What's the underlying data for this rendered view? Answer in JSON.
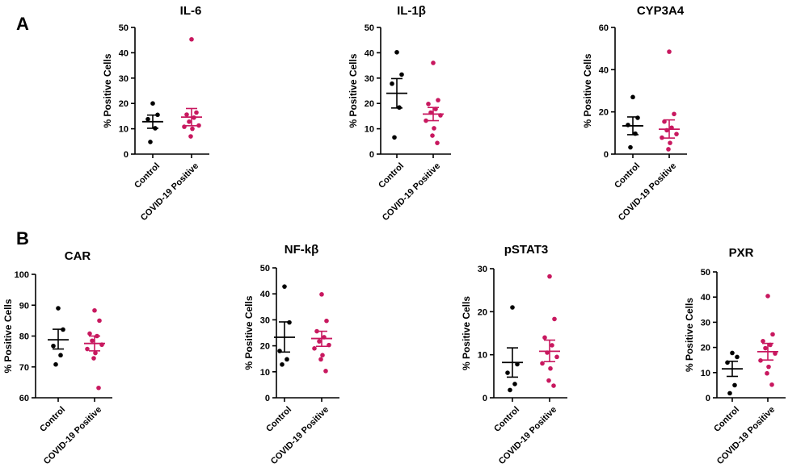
{
  "figure": {
    "panel_labels": [
      "A",
      "B"
    ],
    "colors": {
      "control": "#000000",
      "covid": "#c8185f"
    }
  },
  "chart_data": [
    {
      "type": "scatter",
      "panel": "A",
      "title": "IL-6",
      "ylabel": "% Positive Cells",
      "categories": [
        "Control",
        "COVID-19 Positive"
      ],
      "ylim": [
        0,
        50
      ],
      "yticks": [
        0,
        10,
        20,
        30,
        40,
        50
      ],
      "series": [
        {
          "name": "Control",
          "mean": 12.8,
          "sem_low": 10.2,
          "sem_high": 15.4,
          "values": [
            20,
            15.5,
            13.8,
            10.2,
            4.8
          ]
        },
        {
          "name": "COVID-19 Positive",
          "mean": 14.6,
          "sem_low": 11.2,
          "sem_high": 18.0,
          "values": [
            45.3,
            16.4,
            15.6,
            14.4,
            12.8,
            11.3,
            10.8,
            10.0,
            7.0
          ]
        }
      ]
    },
    {
      "type": "scatter",
      "panel": "A",
      "title": "IL-1β",
      "ylabel": "% Positive Cells",
      "categories": [
        "Control",
        "COVID-19 Positive"
      ],
      "ylim": [
        0,
        50
      ],
      "yticks": [
        0,
        10,
        20,
        30,
        40,
        50
      ],
      "series": [
        {
          "name": "Control",
          "mean": 24.0,
          "sem_low": 18.2,
          "sem_high": 29.8,
          "values": [
            40.2,
            31.4,
            27.8,
            18.4,
            6.6
          ]
        },
        {
          "name": "COVID-19 Positive",
          "mean": 15.8,
          "sem_low": 13.2,
          "sem_high": 18.4,
          "values": [
            36.0,
            21.3,
            19.8,
            17.8,
            16.4,
            15.3,
            13.2,
            10.2,
            7.3,
            4.4
          ]
        }
      ]
    },
    {
      "type": "scatter",
      "panel": "A",
      "title": "CYP3A4",
      "ylabel": "% Positive Cells",
      "categories": [
        "Control",
        "COVID-19 Positive"
      ],
      "ylim": [
        0,
        60
      ],
      "yticks": [
        0,
        20,
        40,
        60
      ],
      "series": [
        {
          "name": "Control",
          "mean": 13.4,
          "sem_low": 9.2,
          "sem_high": 17.6,
          "values": [
            27.0,
            17.2,
            13.8,
            9.7,
            3.2
          ]
        },
        {
          "name": "COVID-19 Positive",
          "mean": 11.8,
          "sem_low": 7.6,
          "sem_high": 16.2,
          "values": [
            48.5,
            19.0,
            15.4,
            12.5,
            11.3,
            9.5,
            7.8,
            5.3,
            2.3
          ]
        }
      ]
    },
    {
      "type": "scatter",
      "panel": "B",
      "title": "CAR",
      "ylabel": "% Positive Cells",
      "categories": [
        "Control",
        "COVID-19 Positive"
      ],
      "ylim": [
        60,
        100
      ],
      "yticks": [
        60,
        70,
        80,
        90,
        100
      ],
      "series": [
        {
          "name": "Control",
          "mean": 78.8,
          "sem_low": 75.8,
          "sem_high": 82.2,
          "values": [
            89.0,
            82.1,
            76.8,
            73.8,
            70.8
          ]
        },
        {
          "name": "COVID-19 Positive",
          "mean": 77.6,
          "sem_low": 75.2,
          "sem_high": 80.0,
          "values": [
            88.3,
            85.0,
            80.8,
            80.0,
            78.5,
            77.2,
            75.8,
            74.5,
            72.8,
            63.2
          ]
        }
      ]
    },
    {
      "type": "scatter",
      "panel": "B",
      "title": "NF-kβ",
      "ylabel": "% Positive Cells",
      "categories": [
        "Control",
        "COVID-19 Positive"
      ],
      "ylim": [
        0,
        50
      ],
      "yticks": [
        0,
        10,
        20,
        30,
        40,
        50
      ],
      "series": [
        {
          "name": "Control",
          "mean": 23.3,
          "sem_low": 17.6,
          "sem_high": 29.2,
          "values": [
            42.8,
            29.0,
            18.0,
            14.8,
            12.8
          ]
        },
        {
          "name": "COVID-19 Positive",
          "mean": 22.8,
          "sem_low": 19.8,
          "sem_high": 25.6,
          "values": [
            39.8,
            29.6,
            25.6,
            23.3,
            21.7,
            20.3,
            19.0,
            16.4,
            14.8,
            10.3
          ]
        }
      ]
    },
    {
      "type": "scatter",
      "panel": "B",
      "title": "pSTAT3",
      "ylabel": "% Positive Cells",
      "categories": [
        "Control",
        "COVID-19 Positive"
      ],
      "ylim": [
        0,
        30
      ],
      "yticks": [
        0,
        10,
        20,
        30
      ],
      "series": [
        {
          "name": "Control",
          "mean": 8.2,
          "sem_low": 4.8,
          "sem_high": 11.6,
          "values": [
            21.0,
            7.8,
            5.8,
            3.2,
            1.8
          ]
        },
        {
          "name": "COVID-19 Positive",
          "mean": 10.8,
          "sem_low": 8.4,
          "sem_high": 13.4,
          "values": [
            28.2,
            18.3,
            14.0,
            12.2,
            10.5,
            9.5,
            8.0,
            6.8,
            4.0,
            2.8
          ]
        }
      ]
    },
    {
      "type": "scatter",
      "panel": "B",
      "title": "PXR",
      "ylabel": "% Positive Cells",
      "categories": [
        "Control",
        "COVID-19 Positive"
      ],
      "ylim": [
        0,
        50
      ],
      "yticks": [
        0,
        10,
        20,
        30,
        40,
        50
      ],
      "series": [
        {
          "name": "Control",
          "mean": 11.5,
          "sem_low": 8.5,
          "sem_high": 14.5,
          "values": [
            17.8,
            16.2,
            14.0,
            5.0,
            1.8
          ]
        },
        {
          "name": "COVID-19 Positive",
          "mean": 18.3,
          "sem_low": 15.0,
          "sem_high": 21.6,
          "values": [
            40.4,
            25.2,
            22.5,
            21.0,
            19.7,
            17.6,
            14.8,
            12.3,
            9.7,
            5.2
          ]
        }
      ]
    }
  ]
}
